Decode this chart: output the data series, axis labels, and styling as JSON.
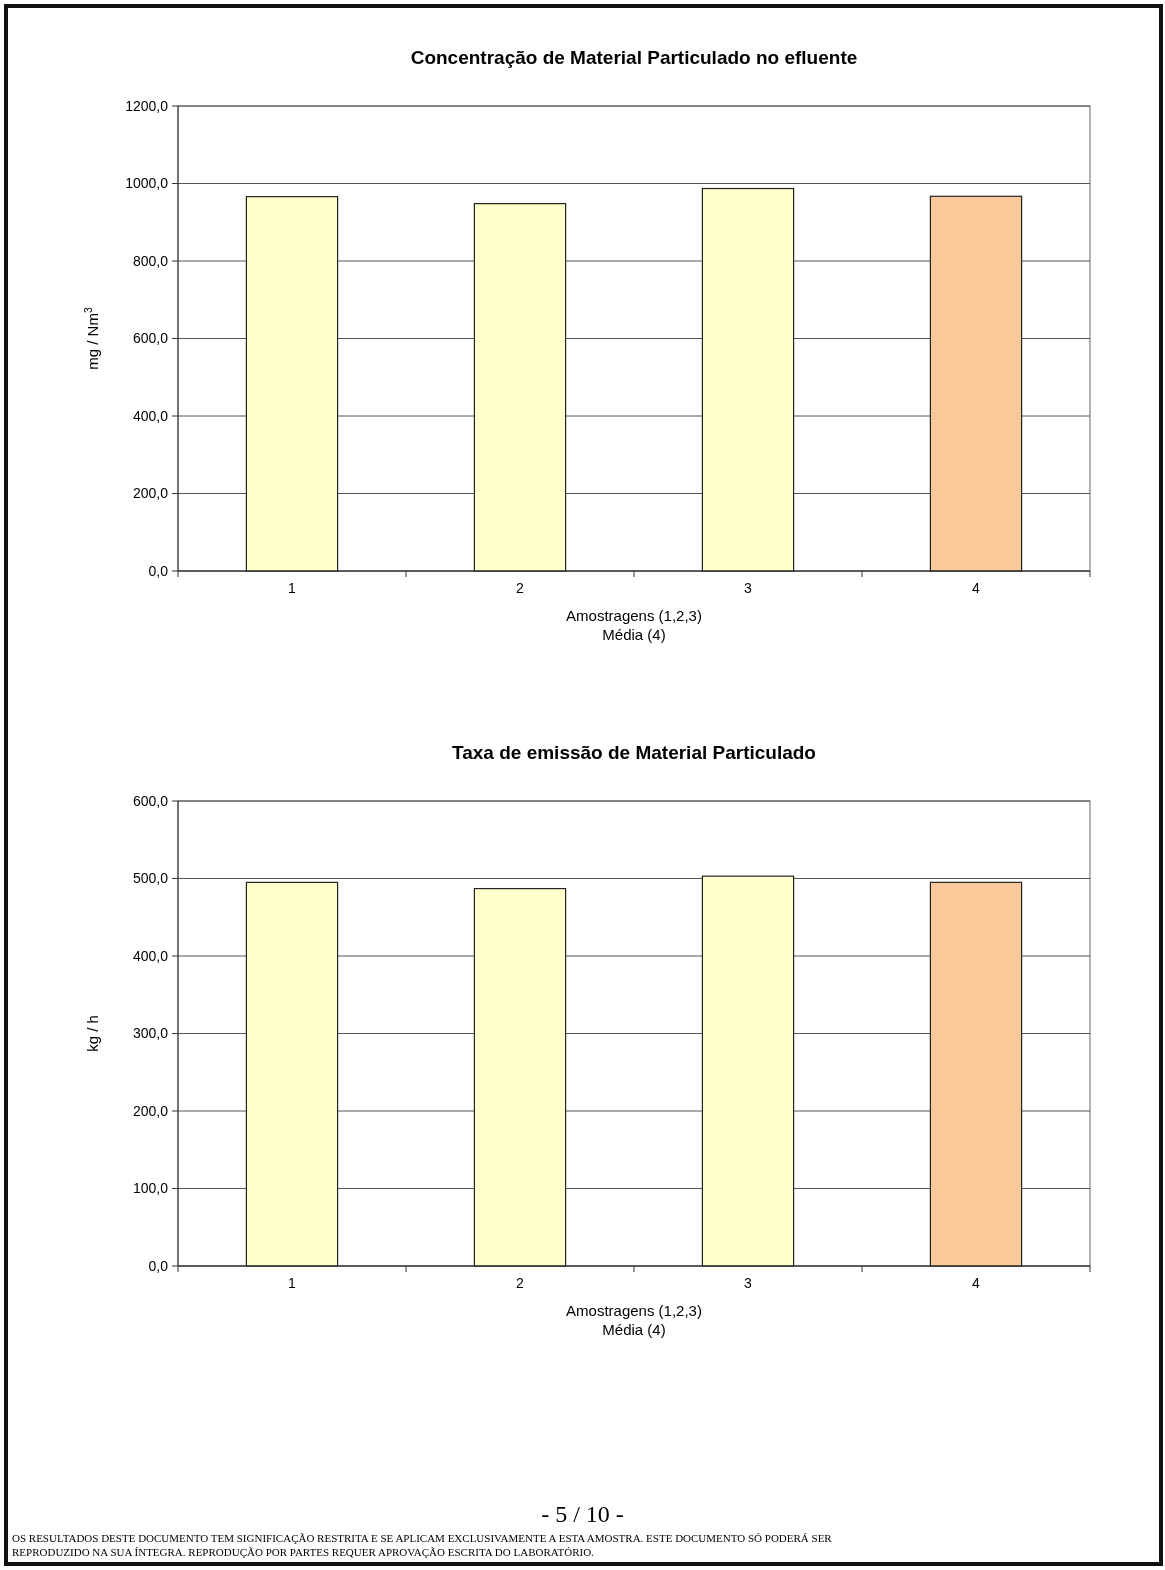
{
  "chart_data": [
    {
      "type": "bar",
      "title": "Concentração de Material Particulado no efluente",
      "xlabel": "Amostragens (1,2,3)\nMédia (4)",
      "ylabel": "mg / Nm$^{3}$",
      "categories": [
        "1",
        "2",
        "3",
        "4"
      ],
      "values": [
        966,
        948,
        987,
        967
      ],
      "colors": [
        "#ffffcc",
        "#ffffcc",
        "#ffffcc",
        "#fac99a"
      ],
      "ylim": [
        0,
        1200
      ],
      "yticks": [
        {
          "value": 0,
          "label": "0,0"
        },
        {
          "value": 200,
          "label": "200,0"
        },
        {
          "value": 400,
          "label": "400,0"
        },
        {
          "value": 600,
          "label": "600,0"
        },
        {
          "value": 800,
          "label": "800,0"
        },
        {
          "value": 1000,
          "label": "1000,0"
        },
        {
          "value": 1200,
          "label": "1200,0"
        }
      ],
      "grid": "y"
    },
    {
      "type": "bar",
      "title": "Taxa de emissão de Material Particulado",
      "xlabel": "Amostragens (1,2,3)\nMédia (4)",
      "ylabel": "kg / h",
      "categories": [
        "1",
        "2",
        "3",
        "4"
      ],
      "values": [
        495,
        487,
        503,
        495
      ],
      "colors": [
        "#ffffcc",
        "#ffffcc",
        "#ffffcc",
        "#fac99a"
      ],
      "ylim": [
        0,
        600
      ],
      "yticks": [
        {
          "value": 0,
          "label": "0,0"
        },
        {
          "value": 100,
          "label": "100,0"
        },
        {
          "value": 200,
          "label": "200,0"
        },
        {
          "value": 300,
          "label": "300,0"
        },
        {
          "value": 400,
          "label": "400,0"
        },
        {
          "value": 500,
          "label": "500,0"
        },
        {
          "value": 600,
          "label": "600,0"
        }
      ],
      "grid": "y",
      "annotations": [
        "- 5 / 10 -",
        "OS RESULTADOS DESTE DOCUMENTO TEM SIGNIFICAÇÃO RESTRITA E SE APLICAM EXCLUSIVAMENTE A ESTA AMOSTRA. ESTE DOCUMENTO SÓ PODERÁ SER",
        "REPRODUZIDO NA SUA ÍNTEGRA. REPRODUÇÃO POR PARTES REQUER APROVAÇÃO ESCRITA DO LABORATÓRIO."
      ]
    }
  ]
}
